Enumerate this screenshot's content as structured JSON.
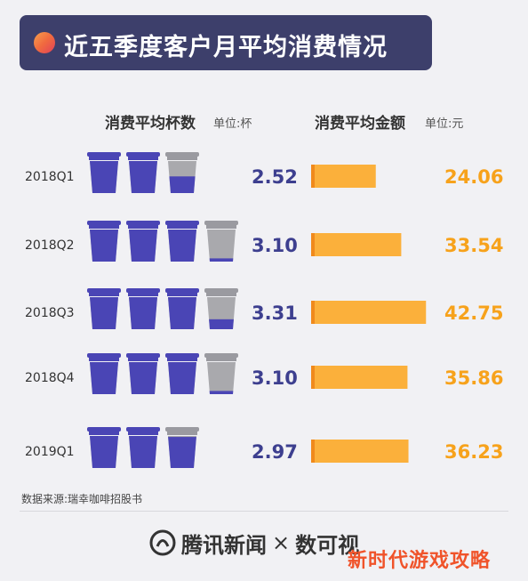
{
  "title": "近五季度客户月平均消费情况",
  "left_header": "消费平均杯数",
  "left_unit": "单位:杯",
  "right_header": "消费平均金额",
  "right_unit": "单位:元",
  "source": "数据来源:瑞幸咖啡招股书",
  "footer": {
    "brand": "腾讯新闻",
    "times": "×",
    "partner": "数可视"
  },
  "overlay": "新时代游戏攻略",
  "colors": {
    "cup_fill": "#4a45b5",
    "cup_empty": "#a9a9ad",
    "bar": "#fbb03b",
    "amount_text": "#f7a21b",
    "count_text": "#3d3f8f"
  },
  "chart_data": {
    "type": "bar",
    "categories": [
      "2018Q1",
      "2018Q2",
      "2018Q3",
      "2018Q4",
      "2019Q1"
    ],
    "series": [
      {
        "name": "消费平均杯数",
        "values": [
          2.52,
          3.1,
          3.31,
          3.1,
          2.97
        ],
        "labels": [
          "2.52",
          "3.10",
          "3.31",
          "3.10",
          "2.97"
        ]
      },
      {
        "name": "消费平均金额",
        "values": [
          24.06,
          33.54,
          42.75,
          35.86,
          36.23
        ],
        "labels": [
          "24.06",
          "33.54",
          "42.75",
          "35.86",
          "36.23"
        ]
      }
    ]
  }
}
